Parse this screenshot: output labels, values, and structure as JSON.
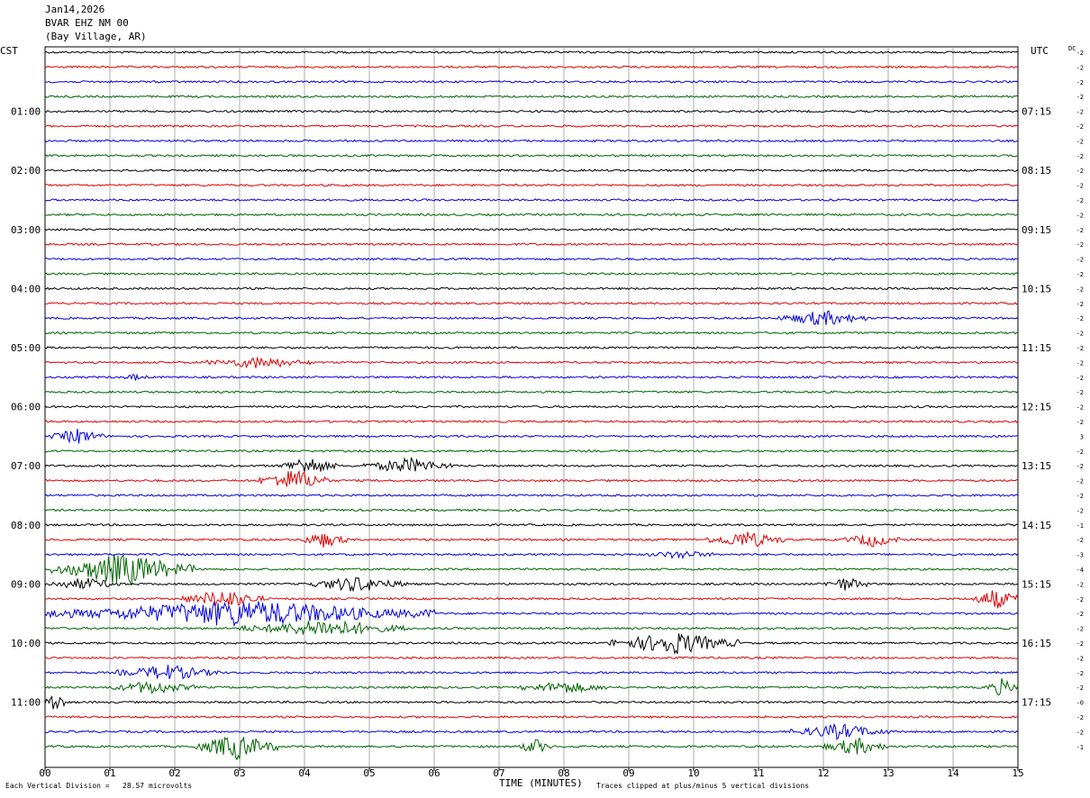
{
  "header": {
    "date": "Jan14,2026",
    "station": "BVAR EHZ NM 00",
    "location": "(Bay Village, AR)"
  },
  "chart_data": {
    "type": "line",
    "title": "BVAR EHZ NM 00",
    "left_axis_label": "CST",
    "right_axis_label": "UTC",
    "dc_label": "DC",
    "xlabel": "TIME (MINUTES)",
    "x_ticks": [
      "00",
      "01",
      "02",
      "03",
      "04",
      "05",
      "06",
      "07",
      "08",
      "09",
      "10",
      "11",
      "12",
      "13",
      "14",
      "15"
    ],
    "xlim": [
      0,
      15
    ],
    "trace_colors": [
      "#000000",
      "#e00000",
      "#0000e0",
      "#006400"
    ],
    "rows": 48,
    "cst_labels": [
      {
        "row": 4,
        "label": "01:00"
      },
      {
        "row": 8,
        "label": "02:00"
      },
      {
        "row": 12,
        "label": "03:00"
      },
      {
        "row": 16,
        "label": "04:00"
      },
      {
        "row": 20,
        "label": "05:00"
      },
      {
        "row": 24,
        "label": "06:00"
      },
      {
        "row": 28,
        "label": "07:00"
      },
      {
        "row": 32,
        "label": "08:00"
      },
      {
        "row": 36,
        "label": "09:00"
      },
      {
        "row": 40,
        "label": "10:00"
      },
      {
        "row": 44,
        "label": "11:00"
      }
    ],
    "utc_labels": [
      {
        "row": 4,
        "label": "07:15"
      },
      {
        "row": 8,
        "label": "08:15"
      },
      {
        "row": 12,
        "label": "09:15"
      },
      {
        "row": 16,
        "label": "10:15"
      },
      {
        "row": 20,
        "label": "11:15"
      },
      {
        "row": 24,
        "label": "12:15"
      },
      {
        "row": 28,
        "label": "13:15"
      },
      {
        "row": 32,
        "label": "14:15"
      },
      {
        "row": 36,
        "label": "15:15"
      },
      {
        "row": 40,
        "label": "16:15"
      },
      {
        "row": 44,
        "label": "17:15"
      }
    ],
    "dc_offsets": [
      "-2",
      "-2",
      "-2",
      "-2",
      "-2",
      "-2",
      "-2",
      "-2",
      "-2",
      "-2",
      "-2",
      "-2",
      "-2",
      "-2",
      "-2",
      "-2",
      "-2",
      "-2",
      "-2",
      "-2",
      "-2",
      "-2",
      "-2",
      "-2",
      "-2",
      "-2",
      "3",
      "-2",
      "-2",
      "-2",
      "-2",
      "-2",
      "-1",
      "-2",
      "-3",
      "-4",
      "-2",
      "-2",
      "-2",
      "-2",
      "-2",
      "-2",
      "-2",
      "-2",
      "-0",
      "-2",
      "-2",
      "-1"
    ],
    "events": [
      {
        "row": 21,
        "x_start": 2.5,
        "x_end": 4.1,
        "amp": 6
      },
      {
        "row": 22,
        "x_start": 1.2,
        "x_end": 1.6,
        "amp": 3
      },
      {
        "row": 18,
        "x_start": 11.3,
        "x_end": 12.7,
        "amp": 8
      },
      {
        "row": 26,
        "x_start": 0.1,
        "x_end": 0.9,
        "amp": 8
      },
      {
        "row": 28,
        "x_start": 3.6,
        "x_end": 4.5,
        "amp": 10
      },
      {
        "row": 28,
        "x_start": 4.9,
        "x_end": 6.3,
        "amp": 8
      },
      {
        "row": 29,
        "x_start": 3.3,
        "x_end": 4.4,
        "amp": 12
      },
      {
        "row": 33,
        "x_start": 3.9,
        "x_end": 4.7,
        "amp": 8
      },
      {
        "row": 33,
        "x_start": 10.2,
        "x_end": 11.4,
        "amp": 9
      },
      {
        "row": 33,
        "x_start": 12.3,
        "x_end": 13.2,
        "amp": 7
      },
      {
        "row": 34,
        "x_start": 9.3,
        "x_end": 10.3,
        "amp": 4
      },
      {
        "row": 35,
        "x_start": 0.1,
        "x_end": 2.3,
        "amp": 18
      },
      {
        "row": 36,
        "x_start": 0.0,
        "x_end": 1.2,
        "amp": 6
      },
      {
        "row": 36,
        "x_start": 4.0,
        "x_end": 5.6,
        "amp": 8
      },
      {
        "row": 36,
        "x_start": 12.0,
        "x_end": 12.7,
        "amp": 7
      },
      {
        "row": 37,
        "x_start": 2.1,
        "x_end": 3.4,
        "amp": 10
      },
      {
        "row": 37,
        "x_start": 14.3,
        "x_end": 15.0,
        "amp": 11
      },
      {
        "row": 38,
        "x_start": 0.0,
        "x_end": 6.0,
        "amp": 14
      },
      {
        "row": 39,
        "x_start": 3.0,
        "x_end": 5.6,
        "amp": 9
      },
      {
        "row": 40,
        "x_start": 8.7,
        "x_end": 10.7,
        "amp": 12
      },
      {
        "row": 42,
        "x_start": 1.1,
        "x_end": 2.7,
        "amp": 8
      },
      {
        "row": 43,
        "x_start": 1.0,
        "x_end": 2.3,
        "amp": 7
      },
      {
        "row": 43,
        "x_start": 7.3,
        "x_end": 8.7,
        "amp": 6
      },
      {
        "row": 43,
        "x_start": 14.5,
        "x_end": 15.0,
        "amp": 9
      },
      {
        "row": 44,
        "x_start": 0.0,
        "x_end": 0.3,
        "amp": 12
      },
      {
        "row": 46,
        "x_start": 11.5,
        "x_end": 13.0,
        "amp": 8
      },
      {
        "row": 47,
        "x_start": 2.3,
        "x_end": 3.6,
        "amp": 14
      },
      {
        "row": 47,
        "x_start": 7.3,
        "x_end": 7.8,
        "amp": 8
      },
      {
        "row": 47,
        "x_start": 12.0,
        "x_end": 13.0,
        "amp": 9
      }
    ]
  },
  "footer": {
    "division": "Each Vertical Division =   28.57 microvolts",
    "clipping": "Traces clipped at plus/minus 5 vertical divisions"
  }
}
